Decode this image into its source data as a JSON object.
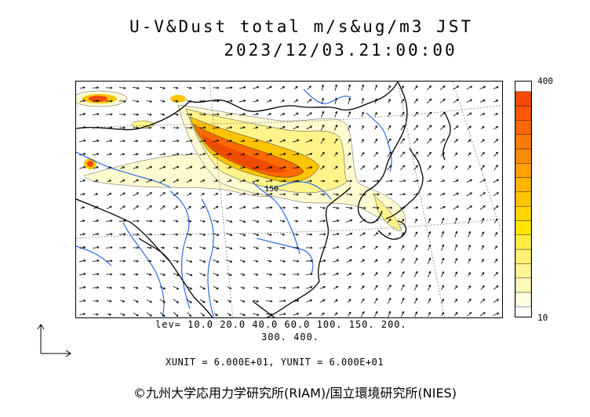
{
  "header": {
    "title_line1": "U-V&Dust total m/s&ug/m3 JST",
    "title_line2": "2023/12/03.21:00:00"
  },
  "colorbar": {
    "max_label": "400",
    "min_label": "10",
    "colors": [
      "#fffde0",
      "#fff8b8",
      "#fff597",
      "#fff070",
      "#ffec45",
      "#ffe600",
      "#ffd400",
      "#ffc400",
      "#ffb200",
      "#ffa000",
      "#ff8c00",
      "#ff7a00",
      "#ff6800",
      "#ff5800",
      "#f54a00"
    ]
  },
  "legend": {
    "levels_line1": "lev= 10.0 20.0 40.0 60.0 100. 150. 200.",
    "levels_line2": "300. 400.",
    "units_line": "XUNIT = 6.000E+01, YUNIT = 6.000E+01"
  },
  "map": {
    "contour_label": "150",
    "colors": {
      "land_border": "#000000",
      "river": "#1560e6",
      "grid": "#888888"
    }
  },
  "footer": {
    "copyright": "©九州大学応用力学研究所(RIAM)/国立環境研究所(NIES)"
  }
}
